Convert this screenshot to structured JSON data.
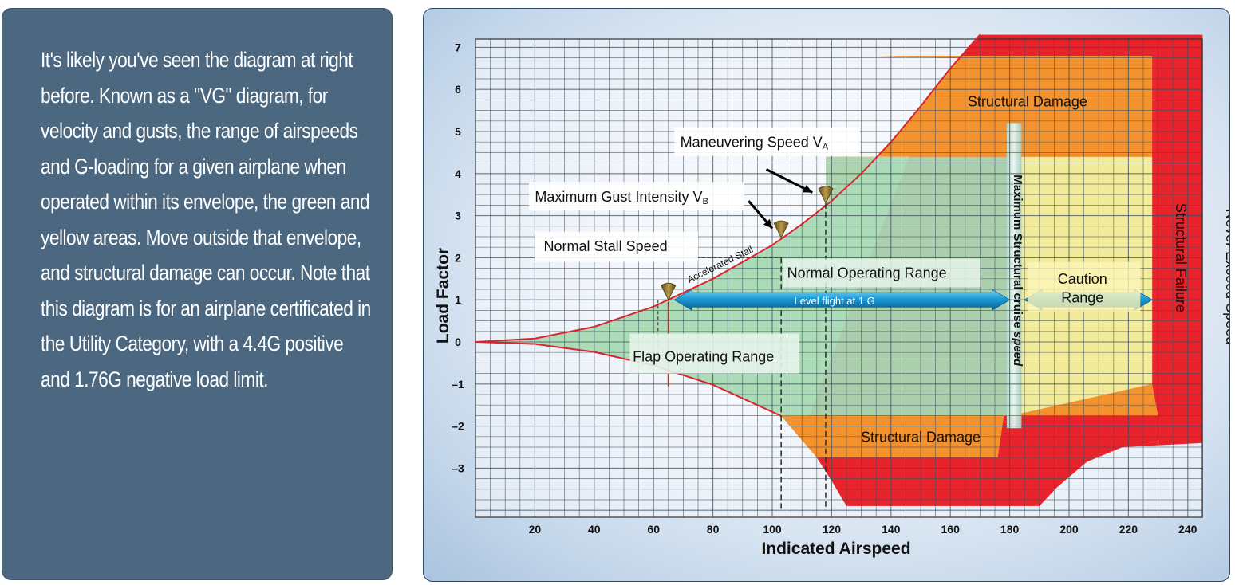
{
  "sidebar": {
    "text": "It's likely you've seen the diagram at right before. Known as a \"VG\" diagram, for velocity and gusts, the range of airspeeds and G-loading for a given airplane when operated within its envelope, the green and yellow areas. Move outside that envelope, and structural damage can occur. Note that this diagram is for an airplane certificated in the Utility Category, with a 4.4G positive and 1.76G negative load limit."
  },
  "colors": {
    "panel_bg": "#4b6880",
    "green_envelope": "#a8d9b4",
    "yellow_caution": "#f2ec9a",
    "orange_damage": "#f4922e",
    "red_failure": "#e8232b",
    "arrow_blue": "#1b9bd6",
    "curve_red": "#d9252e"
  },
  "chart_data": {
    "type": "area",
    "xlabel": "Indicated Airspeed",
    "ylabel": "Load Factor",
    "xlim": [
      0,
      245
    ],
    "ylim": [
      -4,
      7.3
    ],
    "x_ticks": [
      20,
      40,
      60,
      80,
      100,
      120,
      140,
      160,
      180,
      200,
      220,
      240
    ],
    "y_ticks": [
      7,
      6,
      5,
      4,
      3,
      2,
      1,
      0,
      -1,
      -2,
      -3
    ],
    "y_tick_labels": [
      "7",
      "6",
      "5",
      "4",
      "3",
      "2",
      "1",
      "0",
      "–1",
      "–2",
      "–3"
    ],
    "grid": true,
    "load_limits": {
      "positive": 4.4,
      "negative": -1.76
    },
    "speeds": {
      "stall": 65,
      "gust_vb": 103,
      "maneuvering_va": 118,
      "max_structural_cruise": 180,
      "never_exceed": 227
    },
    "positive_stall_curve": {
      "x": [
        0,
        20,
        40,
        60,
        80,
        100,
        110,
        120,
        130,
        140,
        150,
        160,
        170
      ],
      "y": [
        0,
        0.08,
        0.36,
        0.84,
        1.5,
        2.3,
        2.8,
        3.35,
        4.0,
        4.75,
        5.6,
        6.5,
        7.3
      ]
    },
    "negative_stall_curve": {
      "x": [
        0,
        20,
        40,
        60,
        80,
        103
      ],
      "y": [
        0,
        -0.05,
        -0.24,
        -0.56,
        -1.02,
        -1.76
      ]
    },
    "labels": {
      "structural_damage_upper": "Structural Damage",
      "structural_damage_lower": "Structural Damage",
      "structural_failure": "Structural  Failure",
      "never_exceed": "Never Exceed Speed",
      "caution_line1": "Caution",
      "caution_line2": "Range",
      "normal_operating": "Normal Operating Range",
      "flap_operating": "Flap Operating Range",
      "level_flight": "Level flight at 1 G",
      "max_structural_cruise": "Maximum Structural cruise",
      "max_structural_cruise_speed": "speed",
      "accelerated_stall": "Accelerated Stall",
      "normal_stall": "Normal Stall Speed",
      "gust_main": "Maximum Gust Intensity V",
      "gust_sub": "B",
      "maneuvering_main": "Maneuvering Speed V",
      "maneuvering_sub": "A"
    }
  }
}
